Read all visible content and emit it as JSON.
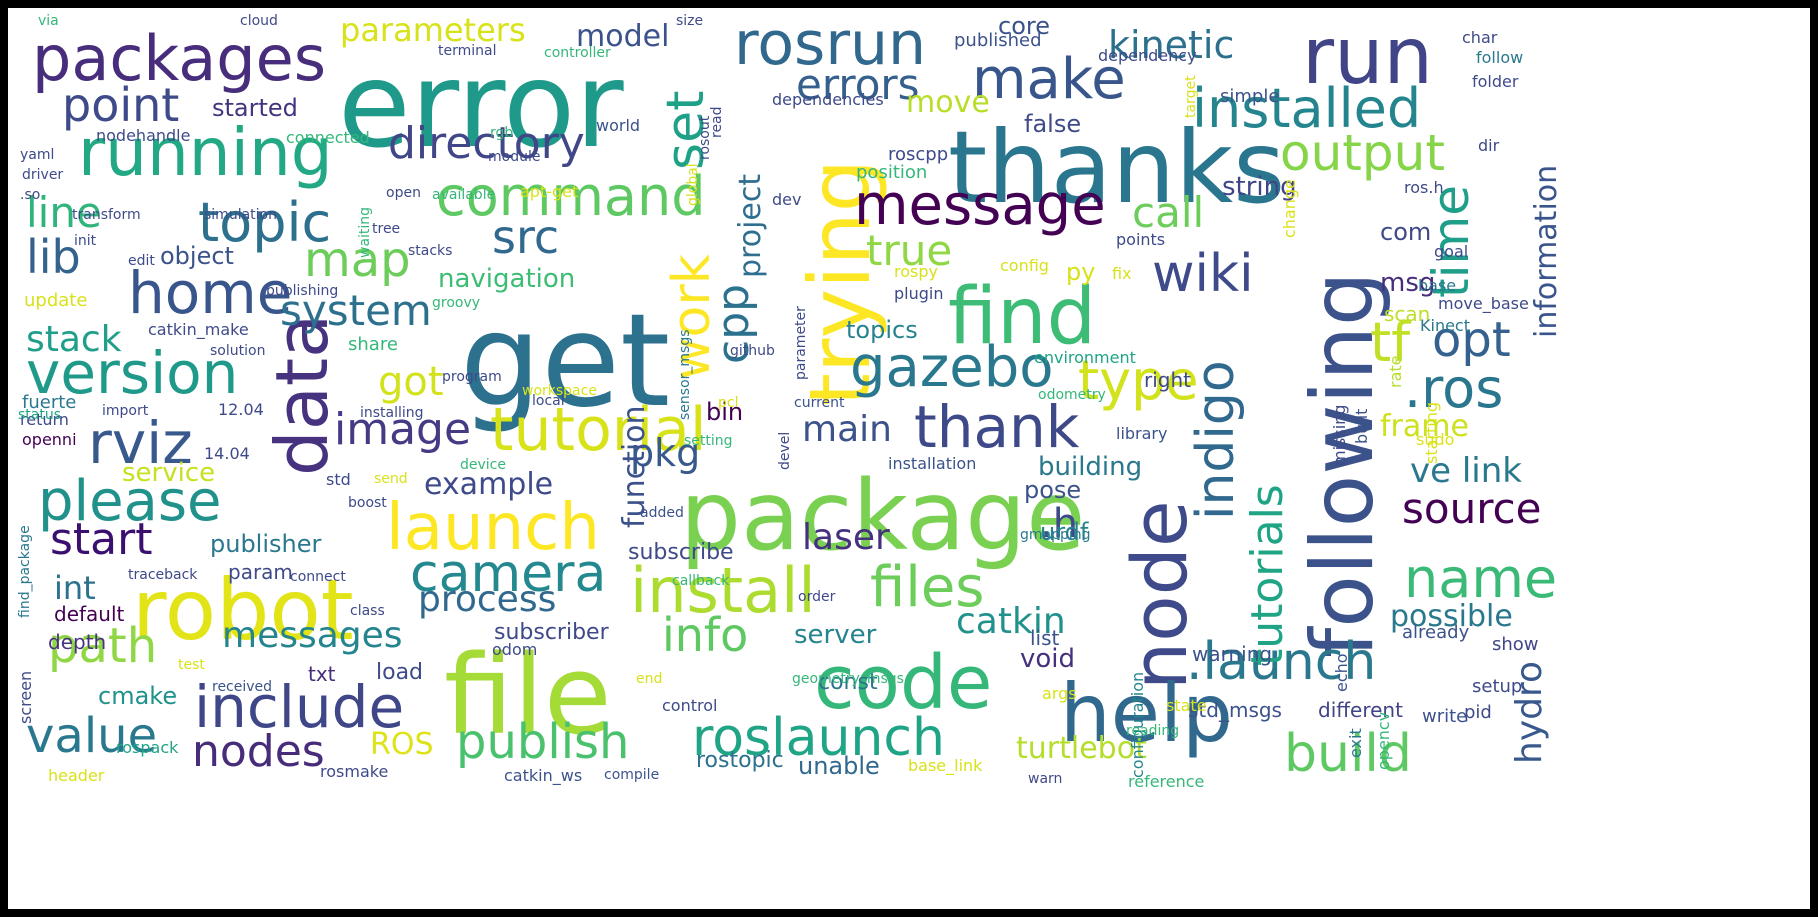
{
  "words": [
    {
      "text": "error",
      "color": "#1f9a8a"
    },
    {
      "text": "get",
      "color": "#2c718e"
    },
    {
      "text": "package",
      "color": "#7ad151"
    },
    {
      "text": "file",
      "color": "#a5db36"
    },
    {
      "text": "thanks",
      "color": "#2a768e"
    },
    {
      "text": "trying",
      "color": "#fde725"
    },
    {
      "text": "following",
      "color": "#3b528b"
    },
    {
      "text": "robot",
      "color": "#e2e418"
    },
    {
      "text": "node",
      "color": "#3e4a89"
    },
    {
      "text": "run",
      "color": "#414487"
    },
    {
      "text": "help",
      "color": "#31688e"
    },
    {
      "text": "packages",
      "color": "#472d7b"
    },
    {
      "text": "running",
      "color": "#22a884"
    },
    {
      "text": "code",
      "color": "#35b779"
    },
    {
      "text": "find",
      "color": "#3cbc75"
    },
    {
      "text": "data",
      "color": "#46327e"
    },
    {
      "text": "install",
      "color": "#addc30"
    },
    {
      "text": "launch",
      "color": "#fde725"
    },
    {
      "text": "tutorial",
      "color": "#d8e219"
    },
    {
      "text": "rosrun",
      "color": "#31688e"
    },
    {
      "text": "installed",
      "color": "#25858e"
    },
    {
      "text": "make",
      "color": "#39568c"
    },
    {
      "text": "version",
      "color": "#1f9a8a"
    },
    {
      "text": "include",
      "color": "#3f4788"
    },
    {
      "text": "please",
      "color": "#21918c"
    },
    {
      "text": "message",
      "color": "#440154"
    },
    {
      "text": "thank",
      "color": "#3e4989"
    },
    {
      "text": "command",
      "color": "#5ec962"
    },
    {
      "text": "topic",
      "color": "#2d708e"
    },
    {
      "text": "gazebo",
      "color": "#2a788e"
    },
    {
      "text": "camera",
      "color": "#23898e"
    },
    {
      "text": "files",
      "color": "#6ccd5a"
    },
    {
      "text": "roslaunch",
      "color": "#20a486"
    },
    {
      "text": "build",
      "color": "#5ec962"
    },
    {
      "text": ".launch",
      "color": "#2a788e"
    },
    {
      "text": "home",
      "color": "#39568c"
    },
    {
      "text": "wiki",
      "color": "#3e4a89"
    },
    {
      "text": "type",
      "color": "#d2e21b"
    },
    {
      "text": "work",
      "color": "#fde725"
    },
    {
      "text": "set",
      "color": "#1fa188"
    },
    {
      "text": "rviz",
      "color": "#38598c"
    },
    {
      "text": ".ros",
      "color": "#2a768e"
    },
    {
      "text": "indigo",
      "color": "#31688e"
    },
    {
      "text": "name",
      "color": "#3aba76"
    },
    {
      "text": "time",
      "color": "#1f9e89"
    },
    {
      "text": "tf",
      "color": "#c0df25"
    },
    {
      "text": "opt",
      "color": "#34618d"
    },
    {
      "text": "output",
      "color": "#86d549"
    },
    {
      "text": "directory",
      "color": "#404688"
    },
    {
      "text": "point",
      "color": "#3e4a89"
    },
    {
      "text": "path",
      "color": "#8fd744"
    },
    {
      "text": "value",
      "color": "#2a788e"
    },
    {
      "text": "nodes",
      "color": "#472c7a"
    },
    {
      "text": "publish",
      "color": "#4ac16d"
    },
    {
      "text": "image",
      "color": "#443b84"
    },
    {
      "text": "system",
      "color": "#2d708e"
    },
    {
      "text": "map",
      "color": "#6ccd5a"
    },
    {
      "text": "lib",
      "color": "#33628d"
    },
    {
      "text": "line",
      "color": "#2fb47c"
    },
    {
      "text": "start",
      "color": "#3b0f70"
    },
    {
      "text": "src",
      "color": "#31688e"
    },
    {
      "text": "cpp",
      "color": "#2c728e"
    },
    {
      "text": "project",
      "color": "#2e6e8e"
    },
    {
      "text": "tutorials",
      "color": "#20a486"
    },
    {
      "text": "information",
      "color": "#39558c"
    },
    {
      "text": "source",
      "color": "#440154"
    },
    {
      "text": "ve link",
      "color": "#2a788e"
    },
    {
      "text": "hydro",
      "color": "#38598c"
    },
    {
      "text": "catkin",
      "color": "#21918c"
    },
    {
      "text": "process",
      "color": "#31688e"
    },
    {
      "text": "messages",
      "color": "#25858e"
    },
    {
      "text": "info",
      "color": "#5ec962"
    },
    {
      "text": "possible",
      "color": "#2a788e"
    },
    {
      "text": "true",
      "color": "#8fd744"
    },
    {
      "text": "call",
      "color": "#6ccd5a"
    },
    {
      "text": "kinetic",
      "color": "#2d708e"
    },
    {
      "text": "errors",
      "color": "#35608d"
    },
    {
      "text": "parameters",
      "color": "#d8e219"
    },
    {
      "text": "model",
      "color": "#3b528b"
    },
    {
      "text": "stack",
      "color": "#1f9e89"
    },
    {
      "text": "got",
      "color": "#d2e21b"
    },
    {
      "text": "pkg",
      "color": "#38598c"
    },
    {
      "text": "main",
      "color": "#3b528b"
    },
    {
      "text": "laser",
      "color": "#46317e"
    },
    {
      "text": ".h",
      "color": "#3e4a89"
    },
    {
      "text": "frame",
      "color": "#cde11d"
    },
    {
      "text": "turtlebot",
      "color": "#b5de2b"
    },
    {
      "text": "ROS",
      "color": "#dde318"
    },
    {
      "text": "int",
      "color": "#2c728e"
    },
    {
      "text": "function",
      "color": "#3b528b"
    },
    {
      "text": "example",
      "color": "#3e4a89"
    },
    {
      "text": "navigation",
      "color": "#3dbc74"
    },
    {
      "text": "topics",
      "color": "#26828e"
    },
    {
      "text": "object",
      "color": "#3b528b"
    },
    {
      "text": "started",
      "color": "#46337f"
    },
    {
      "text": "move",
      "color": "#b8de29"
    },
    {
      "text": "false",
      "color": "#3e4a89"
    },
    {
      "text": "core",
      "color": "#3b528b"
    },
    {
      "text": "py",
      "color": "#d8e219"
    },
    {
      "text": "msg",
      "color": "#472d7b"
    },
    {
      "text": "com",
      "color": "#3e4a89"
    },
    {
      "text": "string",
      "color": "#414487"
    },
    {
      "text": "building",
      "color": "#2a788e"
    },
    {
      "text": "pose",
      "color": "#3b528b"
    },
    {
      "text": "urdf",
      "color": "#25858e"
    },
    {
      "text": "server",
      "color": "#25848e"
    },
    {
      "text": "void",
      "color": "#46317e"
    },
    {
      "text": "publisher",
      "color": "#2a788e"
    },
    {
      "text": "service",
      "color": "#c8e020"
    },
    {
      "text": "cmake",
      "color": "#21918c"
    },
    {
      "text": "bin",
      "color": "#440154"
    },
    {
      "text": "right",
      "color": "#3e4a89"
    },
    {
      "text": "scan",
      "color": "#bddf26"
    },
    {
      "text": "warning",
      "color": "#3b528b"
    },
    {
      "text": "different",
      "color": "#414487"
    },
    {
      "text": "std_msgs",
      "color": "#3b528b"
    },
    {
      "text": "const",
      "color": "#2c738e"
    },
    {
      "text": "subscribe",
      "color": "#3e4a89"
    },
    {
      "text": "subscriber",
      "color": "#3e4989"
    },
    {
      "text": "unable",
      "color": "#31688e"
    },
    {
      "text": "rostopic",
      "color": "#2c718e"
    },
    {
      "text": "load",
      "color": "#3e4a89"
    },
    {
      "text": "param",
      "color": "#3e4a89"
    },
    {
      "text": "default",
      "color": "#440154"
    },
    {
      "text": "depth",
      "color": "#46327e"
    },
    {
      "text": "txt",
      "color": "#472c7a"
    },
    {
      "text": "list",
      "color": "#3b528b"
    },
    {
      "text": "already",
      "color": "#3b528b"
    },
    {
      "text": "show",
      "color": "#404688"
    },
    {
      "text": "setup",
      "color": "#3e4a89"
    },
    {
      "text": "write",
      "color": "#3b528b"
    },
    {
      "text": "pid",
      "color": "#3e4a89"
    },
    {
      "text": "echo",
      "color": "#3b528b"
    },
    {
      "text": "exit",
      "color": "#2a788e"
    },
    {
      "text": "opencv",
      "color": "#35b779"
    },
    {
      "text": "configuration",
      "color": "#25858e"
    },
    {
      "text": "missing",
      "color": "#3e4a89"
    },
    {
      "text": "built",
      "color": "#3b528b"
    },
    {
      "text": "starting",
      "color": "#d8e219"
    },
    {
      "text": "sudo",
      "color": "#dde318"
    },
    {
      "text": "rate",
      "color": "#b5de2b"
    },
    {
      "text": "Kinect",
      "color": "#2a788e"
    },
    {
      "text": "base",
      "color": "#2a788e"
    },
    {
      "text": "move_base",
      "color": "#3e4a89"
    },
    {
      "text": "goal",
      "color": "#3e4a89"
    },
    {
      "text": "ros.h",
      "color": "#3e4a89"
    },
    {
      "text": "dir",
      "color": "#3e4a89"
    },
    {
      "text": "folder",
      "color": "#3e4a89"
    },
    {
      "text": "follow",
      "color": "#2a788e"
    },
    {
      "text": "char",
      "color": "#3e4a89"
    },
    {
      "text": "target",
      "color": "#d8e219"
    },
    {
      "text": "simple",
      "color": "#3b528b"
    },
    {
      "text": "dependency",
      "color": "#3e4a89"
    },
    {
      "text": "published",
      "color": "#3b528b"
    },
    {
      "text": "dependencies",
      "color": "#3e4a89"
    },
    {
      "text": "roscpp",
      "color": "#3e4a89"
    },
    {
      "text": "position",
      "color": "#35b779"
    },
    {
      "text": "dev",
      "color": "#3e4a89"
    },
    {
      "text": "change",
      "color": "#d8e219"
    },
    {
      "text": "plugin",
      "color": "#3e4a89"
    },
    {
      "text": "rospy",
      "color": "#d8e219"
    },
    {
      "text": "config",
      "color": "#d8e219"
    },
    {
      "text": "fix",
      "color": "#d8e219"
    },
    {
      "text": "points",
      "color": "#3e4a89"
    },
    {
      "text": "environment",
      "color": "#20a486"
    },
    {
      "text": "odometry",
      "color": "#35b779"
    },
    {
      "text": "library",
      "color": "#3b528b"
    },
    {
      "text": "installation",
      "color": "#3b528b"
    },
    {
      "text": "gmapping",
      "color": "#2a788e"
    },
    {
      "text": "state",
      "color": "#d8e219"
    },
    {
      "text": "reading",
      "color": "#35b779"
    },
    {
      "text": "reference",
      "color": "#35b779"
    },
    {
      "text": "warn",
      "color": "#3e4a89"
    },
    {
      "text": "args",
      "color": "#d8e219"
    },
    {
      "text": "order",
      "color": "#3e4a89"
    },
    {
      "text": "control",
      "color": "#3e4a89"
    },
    {
      "text": "geometry_msgs",
      "color": "#35b779"
    },
    {
      "text": "end",
      "color": "#d8e219"
    },
    {
      "text": "odom",
      "color": "#3e4a89"
    },
    {
      "text": "catkin_ws",
      "color": "#3b528b"
    },
    {
      "text": "compile",
      "color": "#3b528b"
    },
    {
      "text": "base_link",
      "color": "#d8e219"
    },
    {
      "text": "rosmake",
      "color": "#3e4a89"
    },
    {
      "text": "header",
      "color": "#d8e219"
    },
    {
      "text": "rospack",
      "color": "#20a486"
    },
    {
      "text": "received",
      "color": "#3b528b"
    },
    {
      "text": "test",
      "color": "#d8e219"
    },
    {
      "text": "screen",
      "color": "#3e4a89"
    },
    {
      "text": "traceback",
      "color": "#3e4a89"
    },
    {
      "text": "connect",
      "color": "#3e4a89"
    },
    {
      "text": "callback",
      "color": "#35b779"
    },
    {
      "text": "class",
      "color": "#3e4a89"
    },
    {
      "text": "find_package",
      "color": "#2a788e"
    },
    {
      "text": "boost",
      "color": "#3e4a89"
    },
    {
      "text": "added",
      "color": "#3b528b"
    },
    {
      "text": "device",
      "color": "#35b779"
    },
    {
      "text": "setting",
      "color": "#35b779"
    },
    {
      "text": "devel",
      "color": "#3e4a89"
    },
    {
      "text": "send",
      "color": "#d8e219"
    },
    {
      "text": "std",
      "color": "#3e4a89"
    },
    {
      "text": "openni",
      "color": "#440154"
    },
    {
      "text": "14.04",
      "color": "#3e4a89"
    },
    {
      "text": "return",
      "color": "#3e4a89"
    },
    {
      "text": "status",
      "color": "#20a486"
    },
    {
      "text": "import",
      "color": "#3e4a89"
    },
    {
      "text": "12.04",
      "color": "#3e4a89"
    },
    {
      "text": "fuerte",
      "color": "#2a788e"
    },
    {
      "text": "installing",
      "color": "#3e4a89"
    },
    {
      "text": "local",
      "color": "#3e4a89"
    },
    {
      "text": "pcl",
      "color": "#d8e219"
    },
    {
      "text": "current",
      "color": "#3b528b"
    },
    {
      "text": "workspace",
      "color": "#d8e219"
    },
    {
      "text": "program",
      "color": "#3e4a89"
    },
    {
      "text": "github",
      "color": "#3e4a89"
    },
    {
      "text": "parameter",
      "color": "#3e4a89"
    },
    {
      "text": "sensor_msgs",
      "color": "#2a788e"
    },
    {
      "text": "share",
      "color": "#35b779"
    },
    {
      "text": "solution",
      "color": "#3e4a89"
    },
    {
      "text": "catkin_make",
      "color": "#3e4a89"
    },
    {
      "text": "update",
      "color": "#d8e219"
    },
    {
      "text": "publishing",
      "color": "#3e4a89"
    },
    {
      "text": "groovy",
      "color": "#35b779"
    },
    {
      "text": "edit",
      "color": "#3e4a89"
    },
    {
      "text": "stacks",
      "color": "#3e4a89"
    },
    {
      "text": "init",
      "color": "#3e4a89"
    },
    {
      "text": "waiting",
      "color": "#35b779"
    },
    {
      "text": "tree",
      "color": "#3e4a89"
    },
    {
      "text": "simulation",
      "color": "#3e4a89"
    },
    {
      "text": "transform",
      "color": "#3e4a89"
    },
    {
      "text": "global",
      "color": "#d8e219"
    },
    {
      "text": "available",
      "color": "#35b779"
    },
    {
      "text": "apt-get",
      "color": "#d8e219"
    },
    {
      "text": "open",
      "color": "#3e4a89"
    },
    {
      "text": "rosout",
      "color": "#3e4a89"
    },
    {
      "text": "module",
      "color": "#3e4a89"
    },
    {
      "text": "world",
      "color": "#3b528b"
    },
    {
      "text": "connected",
      "color": "#35b779"
    },
    {
      "text": "rgb",
      "color": "#35b779"
    },
    {
      "text": "nodehandle",
      "color": "#3e4a89"
    },
    {
      "text": "read",
      "color": "#3e4a89"
    },
    {
      "text": "yaml",
      "color": "#3e4a89"
    },
    {
      "text": "driver",
      "color": "#3e4a89"
    },
    {
      "text": ".so",
      "color": "#3e4a89"
    },
    {
      "text": "terminal",
      "color": "#3e4a89"
    },
    {
      "text": "controller",
      "color": "#35b779"
    },
    {
      "text": "via",
      "color": "#35b779"
    },
    {
      "text": "cloud",
      "color": "#3e4a89"
    },
    {
      "text": "size",
      "color": "#3e4a89"
    }
  ]
}
